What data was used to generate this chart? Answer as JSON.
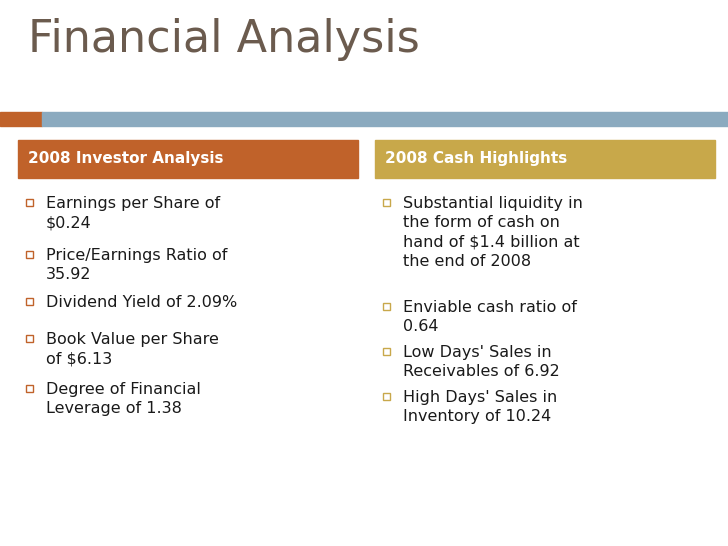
{
  "title": "Financial Analysis",
  "title_color": "#6b5b4e",
  "title_fontsize": 32,
  "background_color": "#ffffff",
  "accent_bar_orange": "#c0622a",
  "accent_bar_blue": "#8baabf",
  "left_header": "2008 Investor Analysis",
  "right_header": "2008 Cash Highlights",
  "left_header_bg": "#c0622a",
  "right_header_bg": "#c8a84a",
  "header_text_color": "#ffffff",
  "bullet_color": "#c8a84a",
  "left_bullet_color": "#c0622a",
  "left_items": [
    "Earnings per Share of\n$0.24",
    "Price/Earnings Ratio of\n35.92",
    "Dividend Yield of 2.09%",
    "Book Value per Share\nof $6.13",
    "Degree of Financial\nLeverage of 1.38"
  ],
  "right_items": [
    "Substantial liquidity in\nthe form of cash on\nhand of $1.4 billion at\nthe end of 2008",
    "Enviable cash ratio of\n0.64",
    "Low Days' Sales in\nReceivables of 6.92",
    "High Days' Sales in\nInventory of 10.24"
  ],
  "item_text_color": "#1a1a1a",
  "item_fontsize": 11.5,
  "header_fontsize": 11
}
